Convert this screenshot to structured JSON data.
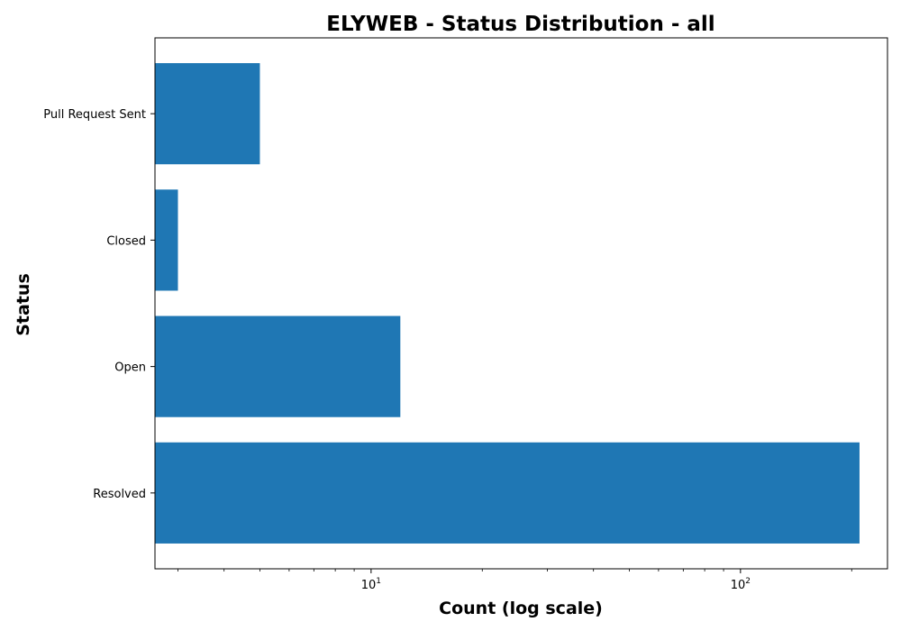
{
  "chart_data": {
    "type": "bar",
    "orientation": "horizontal",
    "title": "ELYWEB - Status Distribution - all",
    "xlabel": "Count (log scale)",
    "ylabel": "Status",
    "x_scale": "log",
    "xlim": [
      2.6,
      250
    ],
    "x_ticks": [
      {
        "value": 10,
        "base": "10",
        "exp": "1"
      },
      {
        "value": 100,
        "base": "10",
        "exp": "2"
      }
    ],
    "categories": [
      "Resolved",
      "Open",
      "Closed",
      "Pull Request Sent"
    ],
    "values": [
      210,
      12,
      3,
      5
    ],
    "bar_color": "#1f77b4",
    "grid": false,
    "legend": "none"
  }
}
